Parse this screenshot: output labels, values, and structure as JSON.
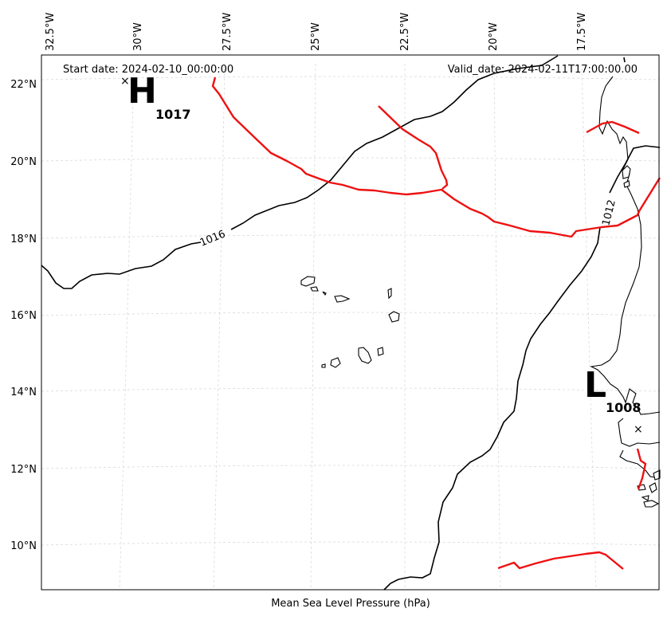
{
  "header": {
    "start_date": "Start date: 2024-02-10_00:00:00",
    "valid_date": "Valid_date: 2024-02-11T17:00:00.00"
  },
  "xlabel": "Mean Sea Level Pressure (hPa)",
  "lon_ticks": [
    "32.5°W",
    "30°W",
    "27.5°W",
    "25°W",
    "22.5°W",
    "20°W",
    "17.5°W"
  ],
  "lat_ticks": [
    "22°N",
    "20°N",
    "18°N",
    "16°N",
    "14°N",
    "12°N",
    "10°N"
  ],
  "pressure_centers": {
    "high": {
      "symbol": "H",
      "value": "1017"
    },
    "low": {
      "symbol": "L",
      "value": "1008"
    }
  },
  "contour_labels": {
    "c1016": "1016",
    "c1012": "1012"
  },
  "colors": {
    "isobar": "#000000",
    "front": "#ee1111",
    "grid": "#d9d9d9"
  }
}
